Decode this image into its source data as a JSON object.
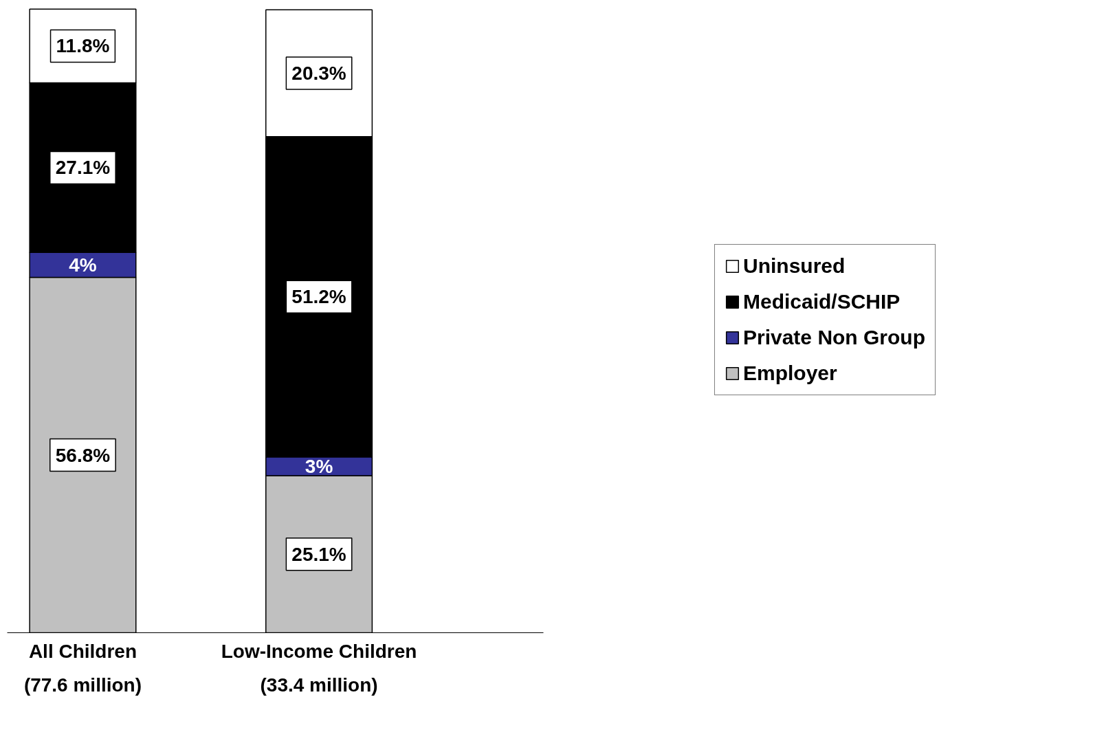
{
  "chart_data": {
    "type": "bar",
    "stacked": true,
    "categories": [
      "All Children\n(77.6 million)",
      "Low-Income Children\n(33.4 million)"
    ],
    "series": [
      {
        "name": "Employer",
        "color": "#c0c0c0",
        "values": [
          56.8,
          25.1
        ],
        "value_labels": [
          "56.8%",
          "25.1%"
        ]
      },
      {
        "name": "Private Non Group",
        "color": "#333399",
        "values": [
          4,
          3
        ],
        "value_labels": [
          "4%",
          "3%"
        ]
      },
      {
        "name": "Medicaid/SCHIP",
        "color": "#000000",
        "values": [
          27.1,
          51.2
        ],
        "value_labels": [
          "27.1%",
          "51.2%"
        ]
      },
      {
        "name": "Uninsured",
        "color": "#ffffff",
        "values": [
          11.8,
          20.3
        ],
        "value_labels": [
          "11.8%",
          "20.3%"
        ]
      }
    ],
    "ylim": [
      0,
      100
    ],
    "tick_labels": "x",
    "grid": false,
    "legend": "right"
  }
}
